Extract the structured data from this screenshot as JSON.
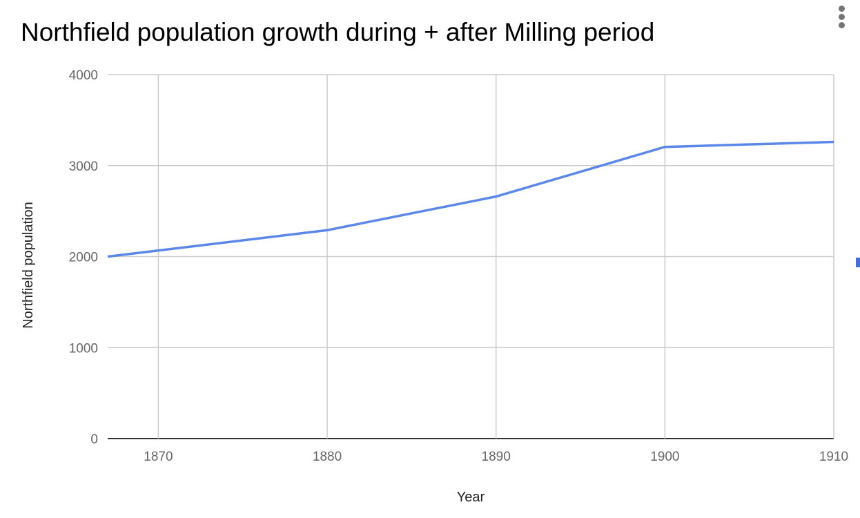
{
  "chart_data": {
    "type": "line",
    "title": "Northfield population growth during + after Milling period",
    "xlabel": "Year",
    "ylabel": "Northfield population",
    "xlim": [
      1867,
      1910
    ],
    "ylim": [
      0,
      4000
    ],
    "x_ticks": [
      "1870",
      "1880",
      "1890",
      "1900",
      "1910"
    ],
    "y_ticks": [
      "0",
      "1000",
      "2000",
      "3000",
      "4000"
    ],
    "grid": true,
    "series": [
      {
        "name": "Northfield population",
        "color": "#5a87e8",
        "x": [
          1867,
          1880,
          1890,
          1900,
          1910
        ],
        "values": [
          2000,
          2290,
          2660,
          3205,
          3260
        ]
      }
    ]
  },
  "menu_icon": "more-vert-icon"
}
